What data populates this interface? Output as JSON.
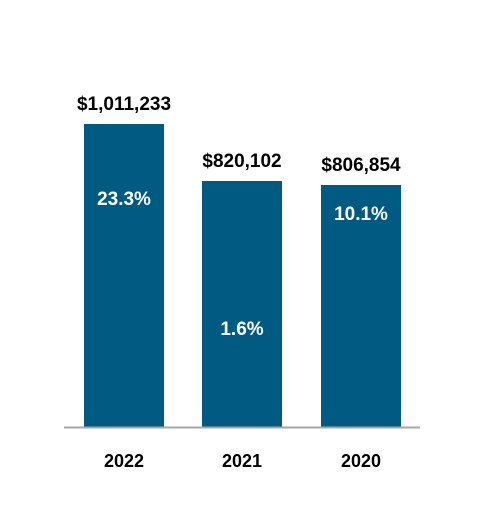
{
  "chart_data": {
    "type": "bar",
    "categories": [
      "2022",
      "2021",
      "2020"
    ],
    "values": [
      1011233,
      820102,
      806854
    ],
    "value_labels": [
      "$1,011,233",
      "$820,102",
      "$806,854"
    ],
    "growth_labels": [
      "23.3%",
      "1.6%",
      "10.1%"
    ],
    "title": "",
    "xlabel": "",
    "ylabel": "",
    "ylim": [
      0,
      1011233
    ],
    "grid": false,
    "legend": "none",
    "colors": {
      "bar": "#005A82",
      "baseline": "#A6A6A6",
      "value_text": "#000000",
      "growth_text": "#FFFFFF"
    }
  }
}
